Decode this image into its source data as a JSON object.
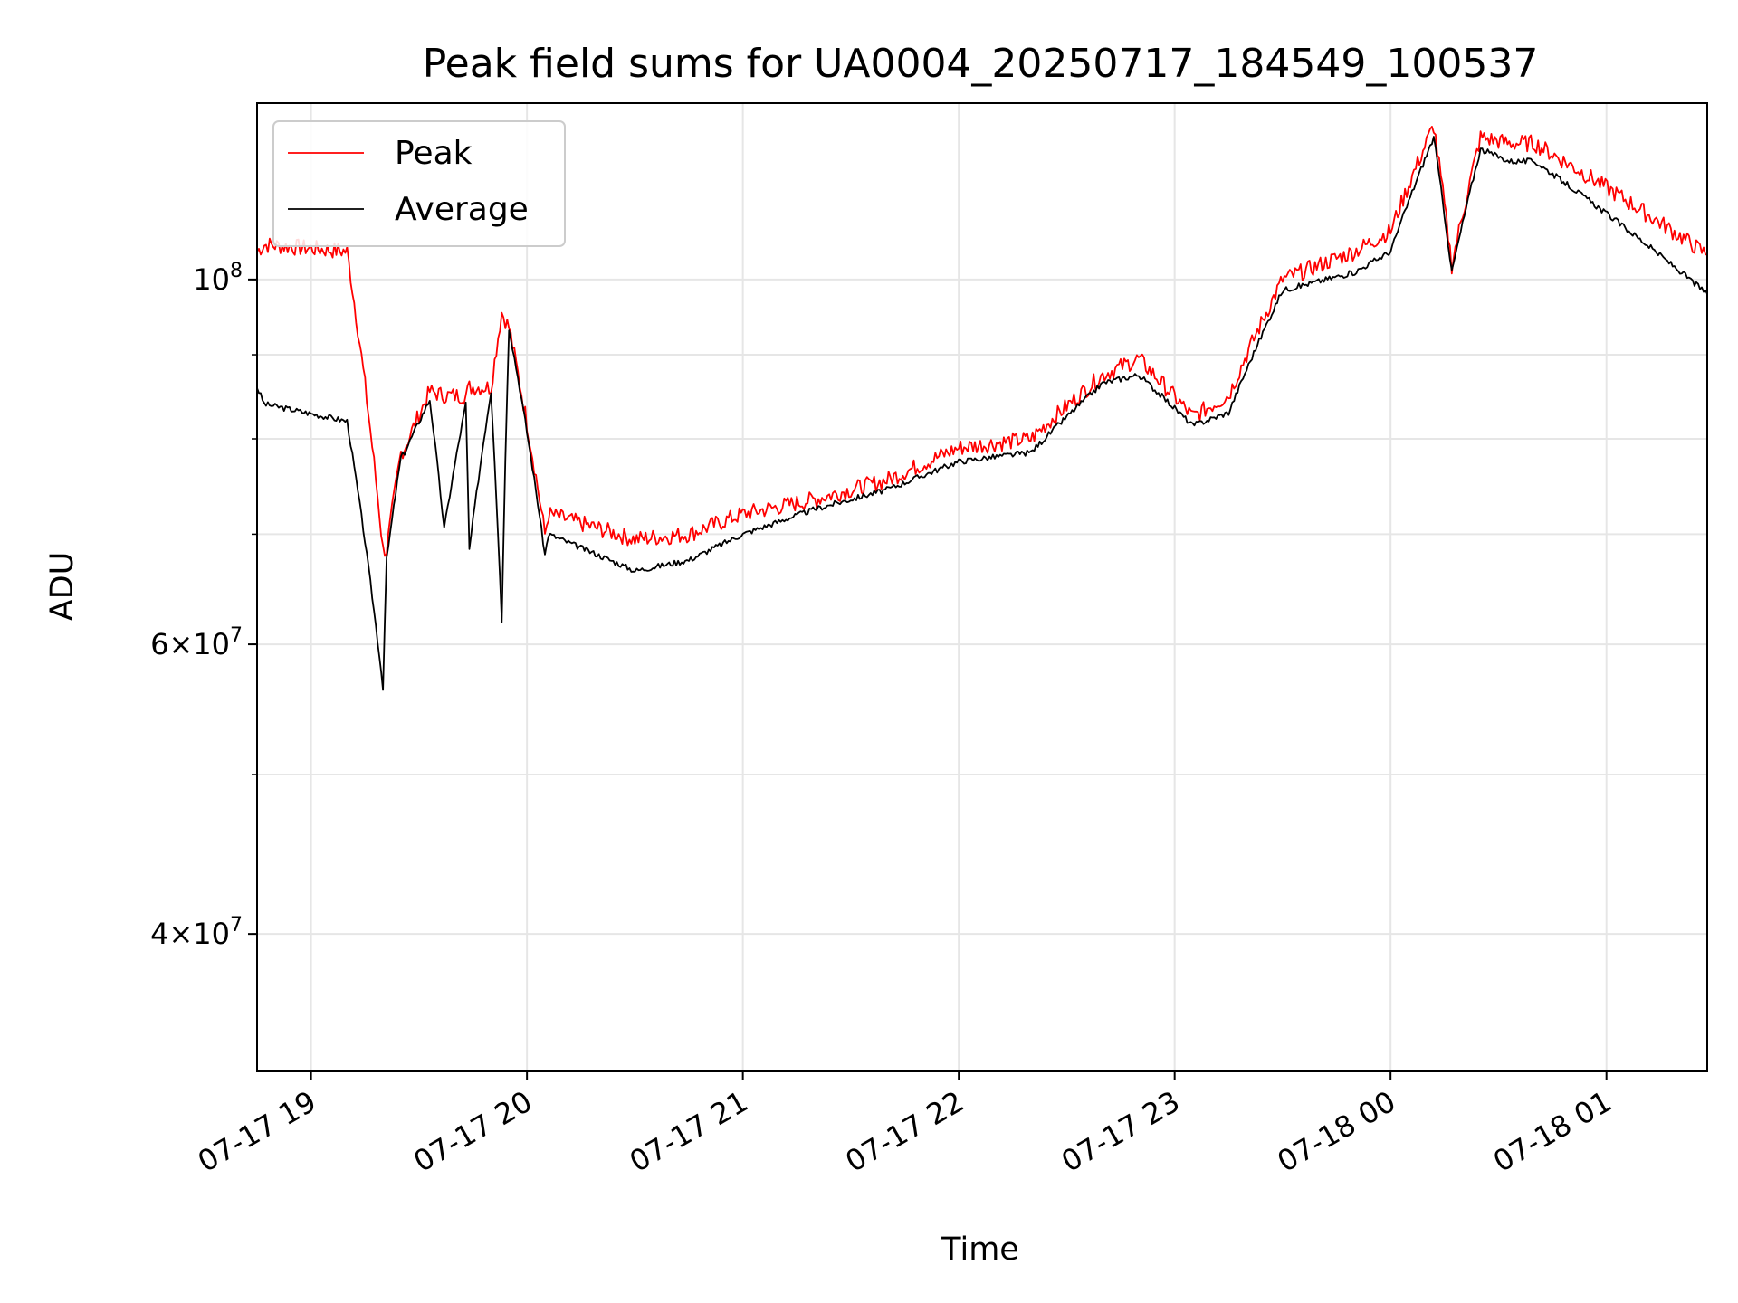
{
  "chart_data": {
    "type": "line",
    "title": "Peak field sums for UA0004_20250717_184549_100537",
    "xlabel": "Time",
    "ylabel": "ADU",
    "yscale": "log",
    "ylim": [
      33000000,
      128000000
    ],
    "xlim": [
      "2025-07-17 18:45",
      "2025-07-18 01:28"
    ],
    "x_ticks": [
      "07-17 19",
      "07-17 20",
      "07-17 21",
      "07-17 22",
      "07-17 23",
      "07-18 00",
      "07-18 01"
    ],
    "y_ticks": [
      {
        "value": 40000000,
        "mantissa": "4",
        "exponent": "7"
      },
      {
        "value": 60000000,
        "mantissa": "6",
        "exponent": "7"
      },
      {
        "value": 100000000,
        "mantissa": "",
        "exponent": "8"
      }
    ],
    "grid": true,
    "legend_position": "top-left",
    "series": [
      {
        "name": "Peak",
        "color": "#ff0000",
        "x": [
          "2025-07-17 18:45",
          "2025-07-17 18:47",
          "2025-07-17 19:10",
          "2025-07-17 19:20",
          "2025-07-17 19:21",
          "2025-07-17 19:25",
          "2025-07-17 19:26",
          "2025-07-17 19:33",
          "2025-07-17 19:37",
          "2025-07-17 19:43",
          "2025-07-17 19:44",
          "2025-07-17 19:50",
          "2025-07-17 19:53",
          "2025-07-17 19:55",
          "2025-07-17 20:05",
          "2025-07-17 20:06",
          "2025-07-17 20:30",
          "2025-07-17 20:45",
          "2025-07-17 21:00",
          "2025-07-17 21:20",
          "2025-07-17 21:40",
          "2025-07-17 22:00",
          "2025-07-17 22:20",
          "2025-07-17 22:40",
          "2025-07-17 22:50",
          "2025-07-17 23:05",
          "2025-07-17 23:15",
          "2025-07-17 23:30",
          "2025-07-17 23:50",
          "2025-07-18 00:00",
          "2025-07-18 00:12",
          "2025-07-18 00:17",
          "2025-07-18 00:25",
          "2025-07-18 00:33",
          "2025-07-18 00:40",
          "2025-07-18 01:28"
        ],
        "y": [
          104000000,
          105000000,
          104000000,
          68500000,
          68500000,
          78500000,
          79000000,
          85500000,
          85000000,
          85000000,
          86000000,
          86000000,
          95500000,
          93500000,
          70000000,
          72000000,
          69500000,
          70000000,
          72000000,
          73500000,
          75500000,
          79000000,
          80000000,
          87500000,
          89500000,
          82500000,
          85000000,
          100000000,
          104000000,
          107000000,
          124000000,
          102000000,
          122000000,
          121000000,
          121000000,
          103500000
        ]
      },
      {
        "name": "Average",
        "color": "#000000",
        "x": [
          "2025-07-17 18:45",
          "2025-07-17 18:47",
          "2025-07-17 19:10",
          "2025-07-17 19:20",
          "2025-07-17 19:21",
          "2025-07-17 19:25",
          "2025-07-17 19:26",
          "2025-07-17 19:33",
          "2025-07-17 19:37",
          "2025-07-17 19:43",
          "2025-07-17 19:44",
          "2025-07-17 19:50",
          "2025-07-17 19:53",
          "2025-07-17 19:55",
          "2025-07-17 20:05",
          "2025-07-17 20:06",
          "2025-07-17 20:30",
          "2025-07-17 20:45",
          "2025-07-17 21:00",
          "2025-07-17 21:20",
          "2025-07-17 21:40",
          "2025-07-17 22:00",
          "2025-07-17 22:20",
          "2025-07-17 22:40",
          "2025-07-17 22:50",
          "2025-07-17 23:05",
          "2025-07-17 23:15",
          "2025-07-17 23:30",
          "2025-07-17 23:50",
          "2025-07-18 00:00",
          "2025-07-18 00:12",
          "2025-07-18 00:17",
          "2025-07-18 00:25",
          "2025-07-18 00:33",
          "2025-07-18 00:40",
          "2025-07-18 01:28"
        ],
        "y": [
          86000000,
          84000000,
          82000000,
          56500000,
          67500000,
          78000000,
          78500000,
          84500000,
          70500000,
          84000000,
          68500000,
          85500000,
          62000000,
          93500000,
          68000000,
          70000000,
          66500000,
          67500000,
          70000000,
          72500000,
          74500000,
          77500000,
          78500000,
          86500000,
          87500000,
          81500000,
          83000000,
          98500000,
          101000000,
          104000000,
          122000000,
          101000000,
          120000000,
          118000000,
          118000000,
          98000000
        ]
      }
    ]
  }
}
